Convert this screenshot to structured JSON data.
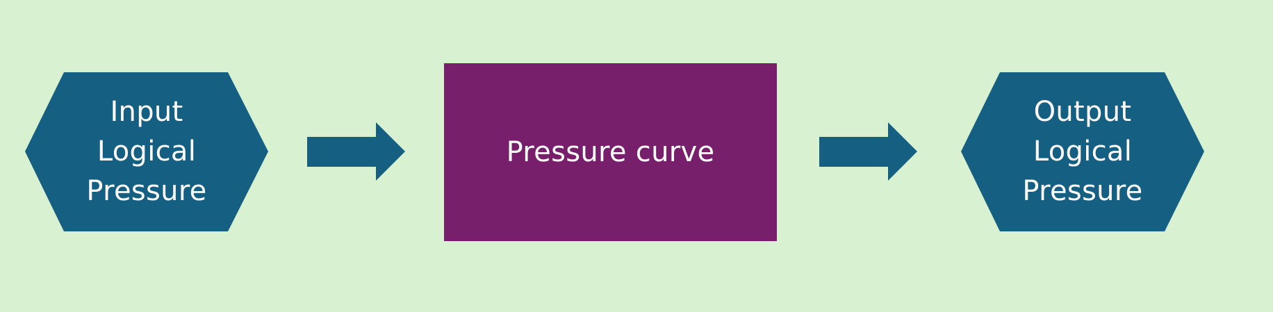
{
  "diagram": {
    "background": "#d8f2d1",
    "colors": {
      "hexagon_fill": "#155f82",
      "process_fill": "#781f6b",
      "arrow_fill": "#155f82",
      "text": "#ffffff"
    },
    "input": {
      "shape": "hexagon",
      "lines": [
        "Input",
        "Logical",
        "Pressure"
      ]
    },
    "process": {
      "shape": "rectangle",
      "label": "Pressure curve"
    },
    "output": {
      "shape": "hexagon",
      "lines": [
        "Output",
        "Logical",
        "Pressure"
      ]
    },
    "connectors": [
      {
        "from": "input",
        "to": "process",
        "shape": "block-arrow-right"
      },
      {
        "from": "process",
        "to": "output",
        "shape": "block-arrow-right"
      }
    ]
  }
}
